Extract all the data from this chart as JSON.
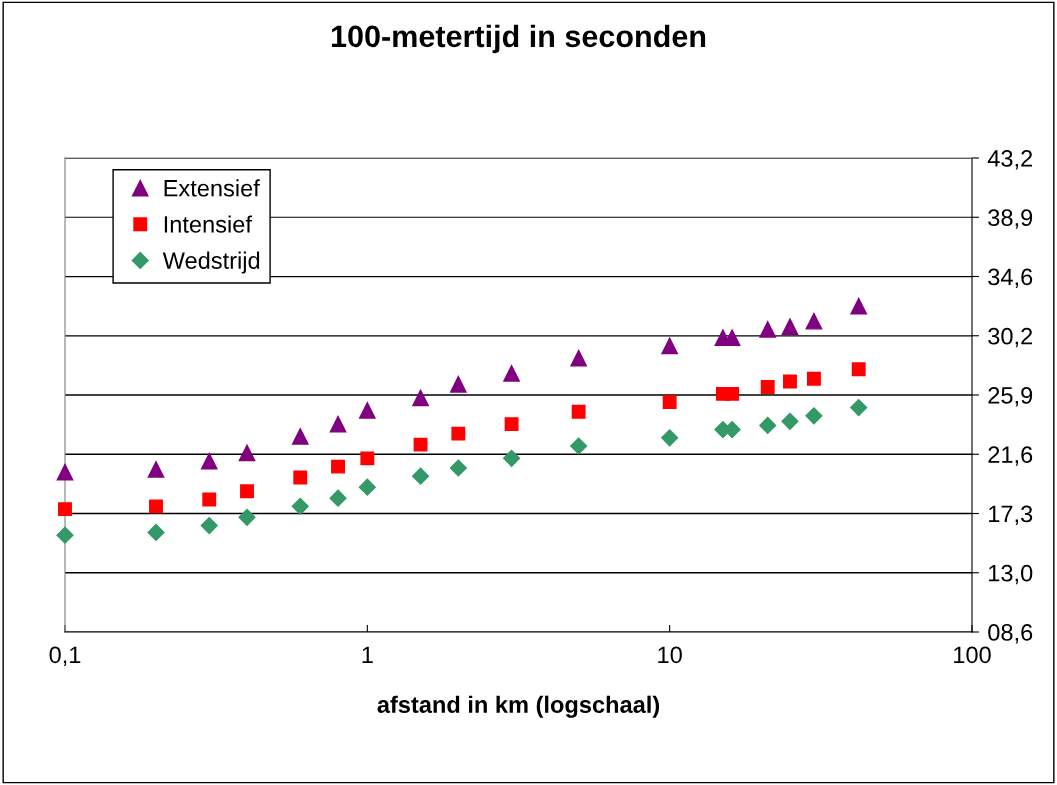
{
  "chart_data": {
    "type": "scatter",
    "title": "100-metertijd in seconden",
    "xlabel": "afstand in km (logschaal)",
    "x": [
      0.1,
      0.2,
      0.3,
      0.4,
      0.6,
      0.8,
      1,
      1.5,
      2,
      3,
      5,
      10,
      15,
      16.09,
      21.1,
      25,
      30,
      42.195
    ],
    "series": [
      {
        "name": "Extensief",
        "color": "#800080",
        "marker": "triangle",
        "values": [
          20.3,
          20.5,
          21.1,
          21.7,
          22.9,
          23.8,
          24.8,
          25.7,
          26.7,
          27.5,
          28.6,
          29.5,
          30.1,
          30.1,
          30.7,
          30.9,
          31.3,
          32.4
        ]
      },
      {
        "name": "Intensief",
        "color": "#ff0000",
        "marker": "square",
        "values": [
          17.6,
          17.8,
          18.3,
          18.9,
          19.9,
          20.7,
          21.3,
          22.3,
          23.1,
          23.8,
          24.7,
          25.4,
          26.0,
          26.0,
          26.5,
          26.9,
          27.1,
          27.8
        ]
      },
      {
        "name": "Wedstrijd",
        "color": "#339966",
        "marker": "diamond",
        "values": [
          15.7,
          15.9,
          16.4,
          17.0,
          17.8,
          18.4,
          19.2,
          20.0,
          20.6,
          21.3,
          22.2,
          22.8,
          23.4,
          23.4,
          23.7,
          24.0,
          24.4,
          25.0
        ]
      }
    ],
    "log": "x",
    "xlim": [
      0.1,
      100
    ],
    "xticks": [
      {
        "value": 0.1,
        "label": "0,1"
      },
      1,
      10,
      100
    ],
    "ylim": [
      8.64,
      43.2
    ],
    "yticks": [
      {
        "value": 8.64,
        "label": "08,6"
      },
      {
        "value": 12.96,
        "label": "13,0"
      },
      {
        "value": 17.28,
        "label": "17,3"
      },
      {
        "value": 21.6,
        "label": "21,6"
      },
      {
        "value": 25.92,
        "label": "25,9"
      },
      {
        "value": 30.24,
        "label": "30,2"
      },
      {
        "value": 34.56,
        "label": "34,6"
      },
      {
        "value": 38.88,
        "label": "38,9"
      },
      {
        "value": 43.2,
        "label": "43,2"
      }
    ],
    "grid": "y",
    "legend": "top left"
  }
}
